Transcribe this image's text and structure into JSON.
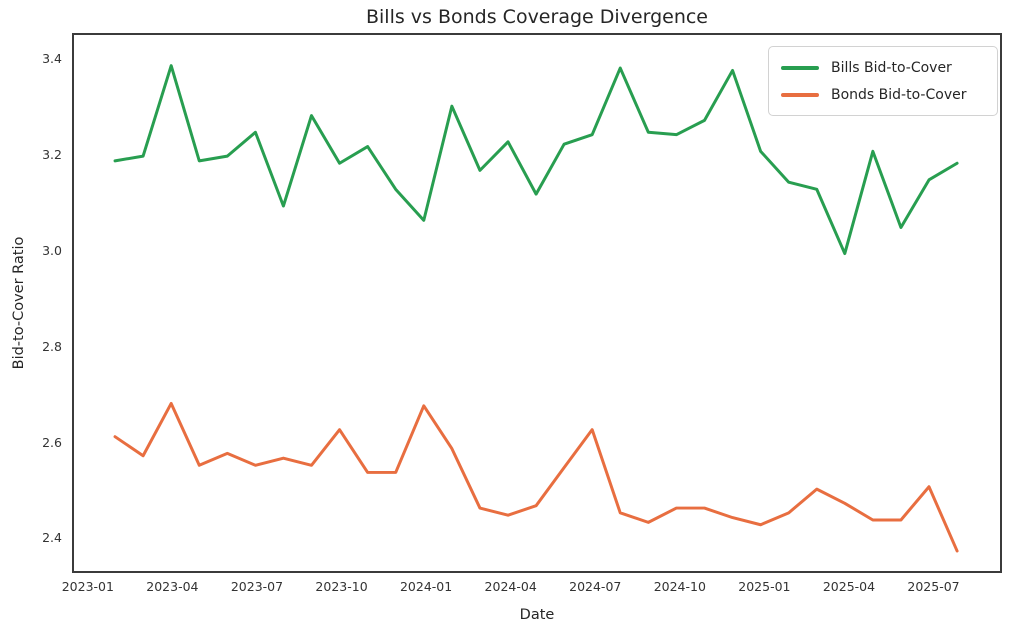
{
  "chart_data": {
    "type": "line",
    "title": "Bills vs Bonds Coverage Divergence",
    "xlabel": "Date",
    "ylabel": "Bid-to-Cover Ratio",
    "grid": false,
    "legend_position": "upper right",
    "ylim": [
      2.3278,
      3.4545
    ],
    "y_ticks": [
      "3.4",
      "3.2",
      "3.0",
      "2.8",
      "2.6",
      "2.4"
    ],
    "x_ticks": [
      "2023-01",
      "2023-04",
      "2023-07",
      "2023-10",
      "2024-01",
      "2024-04",
      "2024-07",
      "2024-10",
      "2025-01",
      "2025-04",
      "2025-07"
    ],
    "x": [
      "2023-01",
      "2023-02",
      "2023-03",
      "2023-04",
      "2023-05",
      "2023-06",
      "2023-07",
      "2023-08",
      "2023-09",
      "2023-10",
      "2023-11",
      "2023-12",
      "2024-01",
      "2024-02",
      "2024-03",
      "2024-04",
      "2024-05",
      "2024-06",
      "2024-07",
      "2024-08",
      "2024-09",
      "2024-10",
      "2024-11",
      "2024-12",
      "2025-01",
      "2025-02",
      "2025-03",
      "2025-04",
      "2025-05",
      "2025-06",
      "2025-07"
    ],
    "series": [
      {
        "name": "Bills Bid-to-Cover",
        "color": "#289e50",
        "values": [
          3.19,
          3.2,
          3.39,
          3.19,
          3.2,
          3.25,
          3.095,
          3.285,
          3.185,
          3.22,
          3.13,
          3.065,
          3.305,
          3.17,
          3.23,
          3.12,
          3.225,
          3.245,
          3.385,
          3.25,
          3.245,
          3.275,
          3.38,
          3.21,
          3.145,
          3.13,
          2.995,
          3.21,
          3.05,
          3.15,
          3.185
        ]
      },
      {
        "name": "Bonds Bid-to-Cover",
        "color": "#e86e40",
        "values": [
          2.61,
          2.57,
          2.68,
          2.55,
          2.575,
          2.55,
          2.565,
          2.55,
          2.625,
          2.535,
          2.535,
          2.675,
          2.585,
          2.46,
          2.445,
          2.465,
          2.545,
          2.625,
          2.45,
          2.43,
          2.46,
          2.46,
          2.44,
          2.425,
          2.45,
          2.5,
          2.47,
          2.435,
          2.435,
          2.505,
          2.37
        ]
      }
    ]
  }
}
